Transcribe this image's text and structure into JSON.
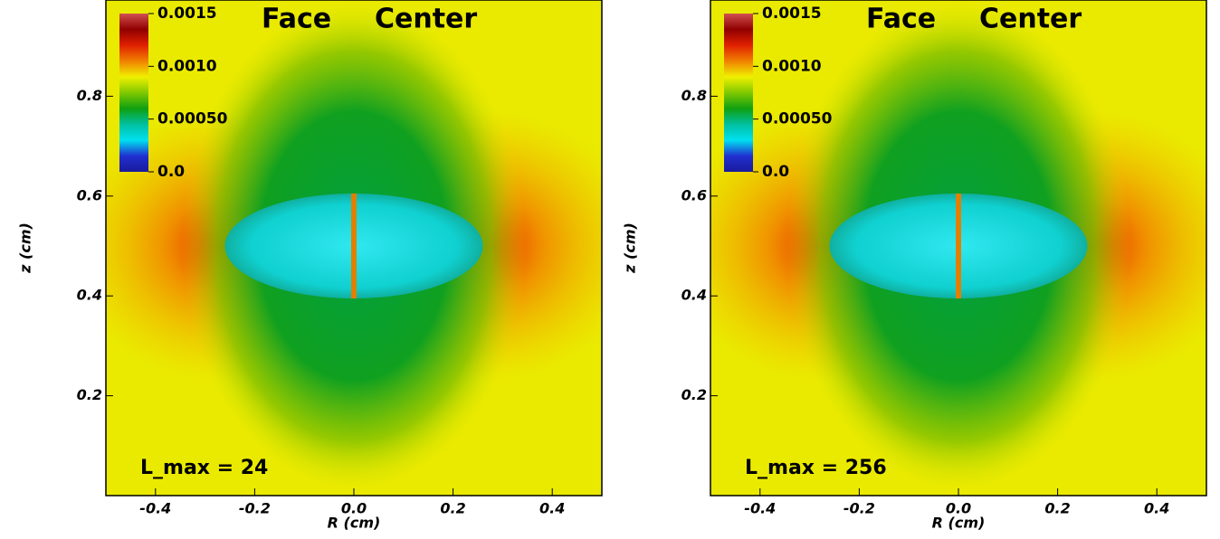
{
  "chart_data": [
    {
      "type": "heatmap",
      "titles": [
        "Face",
        "Center"
      ],
      "annotation": "L_max = 24",
      "xlabel": "R (cm)",
      "ylabel": "z (cm)",
      "xlim": [
        -0.5,
        0.5
      ],
      "xticks": [
        -0.4,
        -0.2,
        {
          "value": 0,
          "label": "0.0"
        },
        0.2,
        0.4
      ],
      "ylim": [
        0,
        1.0
      ],
      "yticks": [
        0.2,
        0.4,
        0.6,
        0.8
      ],
      "colorbar": {
        "clim": [
          0,
          0.0015
        ],
        "colors": [
          "#1a1a9c",
          "#2030d0",
          "#00e0f0",
          "#00c0a0",
          "#10a010",
          "#80c800",
          "#f0f000",
          "#f08000",
          "#e02000",
          "#900000",
          "#d05050"
        ],
        "ticks": [
          {
            "value": 0,
            "label": "0.0"
          },
          {
            "value": 0.0005,
            "label": "0.00050"
          },
          {
            "value": 0.001,
            "label": "0.0010"
          },
          0.0015
        ]
      }
    },
    {
      "type": "heatmap",
      "titles": [
        "Face",
        "Center"
      ],
      "annotation": "L_max = 256",
      "xlabel": "R (cm)",
      "ylabel": "z (cm)",
      "xlim": [
        -0.5,
        0.5
      ],
      "xticks": [
        -0.4,
        -0.2,
        {
          "value": 0,
          "label": "0.0"
        },
        0.2,
        0.4
      ],
      "ylim": [
        0,
        1.0
      ],
      "yticks": [
        0.2,
        0.4,
        0.6,
        0.8
      ],
      "colorbar": {
        "clim": [
          0,
          0.0015
        ],
        "colors": [
          "#1a1a9c",
          "#2030d0",
          "#00e0f0",
          "#00c0a0",
          "#10a010",
          "#80c800",
          "#f0f000",
          "#f08000",
          "#e02000",
          "#900000",
          "#d05050"
        ],
        "ticks": [
          {
            "value": 0,
            "label": "0.0"
          },
          {
            "value": 0.0005,
            "label": "0.00050"
          },
          {
            "value": 0.001,
            "label": "0.0010"
          },
          0.0015
        ]
      }
    }
  ]
}
